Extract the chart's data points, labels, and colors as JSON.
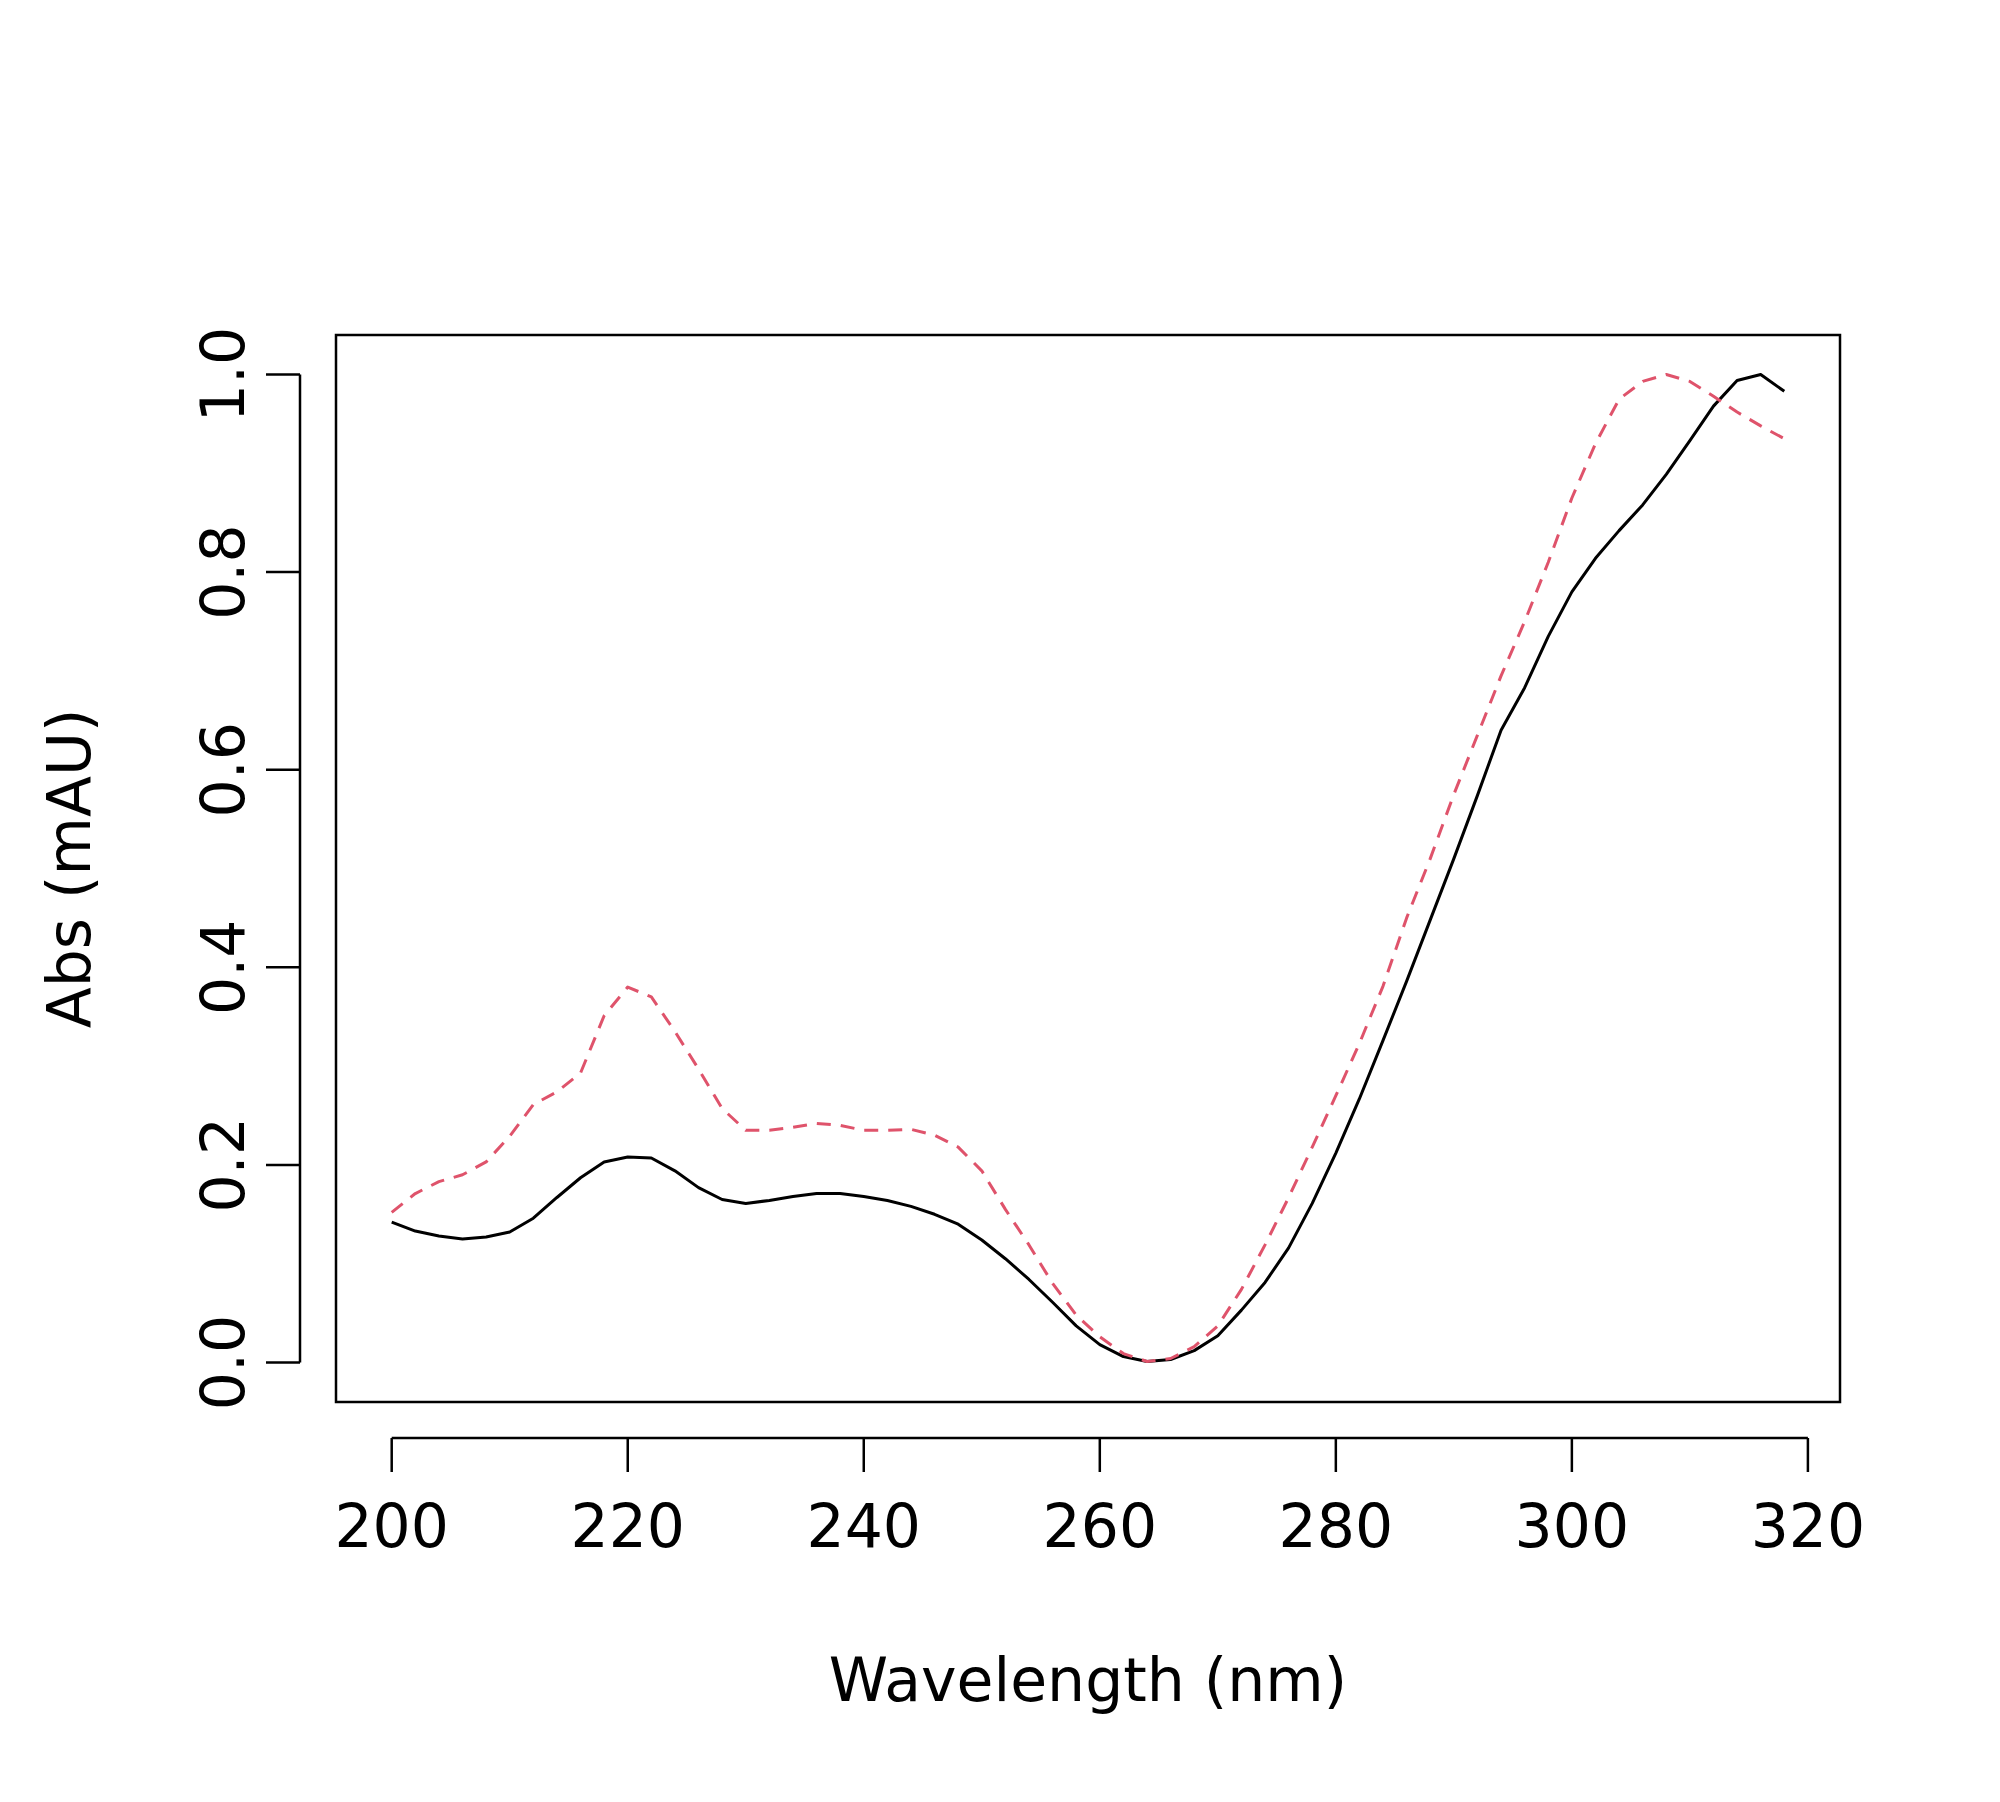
{
  "chart_data": {
    "type": "line",
    "xlabel": "Wavelength (nm)",
    "ylabel": "Abs (mAU)",
    "x": [
      200,
      202,
      204,
      206,
      208,
      210,
      212,
      214,
      216,
      218,
      220,
      222,
      224,
      226,
      228,
      230,
      232,
      234,
      236,
      238,
      240,
      242,
      244,
      246,
      248,
      250,
      252,
      254,
      256,
      258,
      260,
      262,
      264,
      266,
      268,
      270,
      272,
      274,
      276,
      278,
      280,
      282,
      284,
      286,
      288,
      290,
      292,
      294,
      296,
      298,
      300,
      302,
      304,
      306,
      308,
      310,
      312,
      314,
      316,
      318
    ],
    "series": [
      {
        "color": "#000000",
        "line_style": "solid",
        "values": [
          0.142,
          0.133,
          0.128,
          0.125,
          0.127,
          0.132,
          0.146,
          0.167,
          0.187,
          0.203,
          0.208,
          0.207,
          0.194,
          0.177,
          0.165,
          0.161,
          0.164,
          0.168,
          0.171,
          0.171,
          0.168,
          0.164,
          0.158,
          0.15,
          0.14,
          0.124,
          0.105,
          0.084,
          0.061,
          0.037,
          0.018,
          0.006,
          0.001,
          0.003,
          0.012,
          0.027,
          0.053,
          0.081,
          0.116,
          0.161,
          0.212,
          0.267,
          0.326,
          0.386,
          0.448,
          0.51,
          0.574,
          0.64,
          0.683,
          0.735,
          0.78,
          0.814,
          0.842,
          0.868,
          0.899,
          0.933,
          0.968,
          0.994,
          1.0,
          0.983
        ]
      },
      {
        "color": "#df536b",
        "line_style": "dashed",
        "values": [
          0.152,
          0.171,
          0.183,
          0.19,
          0.203,
          0.229,
          0.261,
          0.274,
          0.293,
          0.351,
          0.38,
          0.37,
          0.335,
          0.297,
          0.257,
          0.235,
          0.235,
          0.238,
          0.242,
          0.24,
          0.235,
          0.235,
          0.236,
          0.23,
          0.218,
          0.194,
          0.155,
          0.119,
          0.08,
          0.048,
          0.026,
          0.009,
          0.001,
          0.004,
          0.016,
          0.037,
          0.074,
          0.119,
          0.167,
          0.218,
          0.27,
          0.323,
          0.381,
          0.45,
          0.51,
          0.575,
          0.635,
          0.695,
          0.75,
          0.81,
          0.875,
          0.93,
          0.975,
          0.993,
          1.0,
          0.993,
          0.978,
          0.962,
          0.948,
          0.935
        ]
      }
    ],
    "xlim": [
      195.28,
      322.72
    ],
    "ylim": [
      -0.04,
      1.04
    ],
    "xticks": [
      200,
      220,
      240,
      260,
      280,
      300,
      320
    ],
    "yticks": [
      {
        "value": 0,
        "label": "0.0"
      },
      {
        "value": 0.2,
        "label": "0.2"
      },
      {
        "value": 0.4,
        "label": "0.4"
      },
      {
        "value": 0.6,
        "label": "0.6"
      },
      {
        "value": 0.8,
        "label": "0.8"
      },
      {
        "value": 1,
        "label": "1.0"
      }
    ],
    "grid": false
  }
}
